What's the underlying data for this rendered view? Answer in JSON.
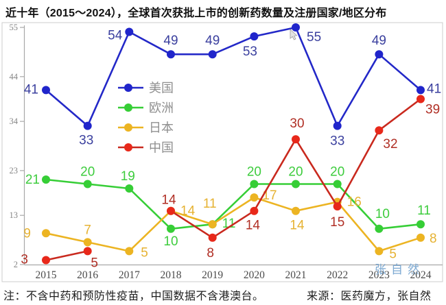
{
  "title": "近十年（2015～2024），全球首次获批上市的创新药数量及注册国家/地区分布",
  "notes": {
    "left": "注：不含中药和预防性疫苗，中国数据不含港澳台。",
    "right": "来源：医药魔方，张自然"
  },
  "watermark": "张自然",
  "chart_data": {
    "type": "line",
    "title": "近十年（2015～2024），全球首次获批上市的创新药数量及注册国家/地区分布",
    "categories": [
      "2015",
      "2016",
      "2017",
      "2018",
      "2019",
      "2020",
      "2021",
      "2022",
      "2023",
      "2024"
    ],
    "series": [
      {
        "name": "美国",
        "color": "#2328C8",
        "marker_color": "#2025CB",
        "label_color": "#3A3F9E",
        "values": [
          41,
          33,
          54,
          49,
          49,
          53,
          55,
          33,
          49,
          41
        ]
      },
      {
        "name": "欧洲",
        "color": "#36CE36",
        "marker_color": "#36CE36",
        "label_color": "#3DCC3D",
        "values": [
          21,
          20,
          19,
          10,
          11,
          20,
          20,
          20,
          10,
          11
        ]
      },
      {
        "name": "日本",
        "color": "#ECB422",
        "marker_color": "#ECB422",
        "label_color": "#E6B232",
        "values": [
          9,
          7,
          5,
          14,
          11,
          17,
          14,
          16,
          5,
          8
        ]
      },
      {
        "name": "中国",
        "color": "#C9291E",
        "marker_color": "#E8281A",
        "label_color": "#B02E24",
        "values": [
          3,
          5,
          null,
          14,
          8,
          14,
          30,
          15,
          32,
          39
        ]
      }
    ],
    "y_ticks": [
      55,
      44,
      34,
      23,
      13,
      2
    ],
    "ylim": [
      2,
      55
    ],
    "grid": false,
    "legend_position": "inside-upper-left",
    "legend_entries": [
      "美国",
      "欧洲",
      "日本",
      "中国"
    ]
  },
  "colors": {
    "frame": "#cccccc",
    "axis": "#a8a8a8",
    "tick_text": "#858585",
    "year_text": "#4a4a4a",
    "legend_text": "#8f8f8f",
    "watermark": "#6FA0CE"
  }
}
